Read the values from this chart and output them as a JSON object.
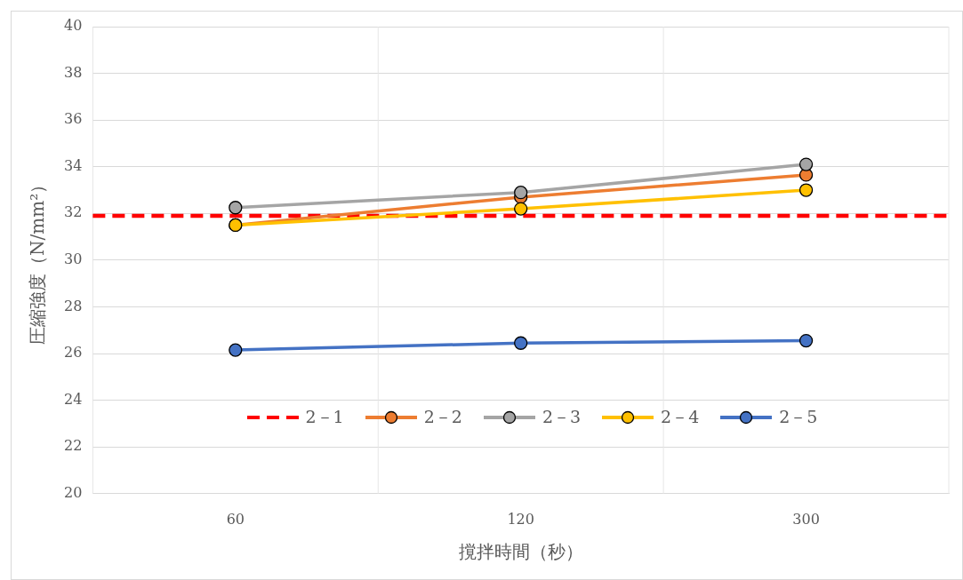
{
  "chart_data": {
    "type": "line",
    "xlabel": "撹拌時間（秒）",
    "ylabel": "圧縮強度（N/mm²）",
    "categories": [
      "60",
      "120",
      "300"
    ],
    "series": [
      {
        "name": "2－2",
        "color": "#ed7d31",
        "values": [
          31.5,
          32.7,
          33.65
        ]
      },
      {
        "name": "2－3",
        "color": "#a5a5a5",
        "values": [
          32.25,
          32.9,
          34.1
        ]
      },
      {
        "name": "2－4",
        "color": "#ffc000",
        "values": [
          31.5,
          32.2,
          33.0
        ]
      },
      {
        "name": "2－5",
        "color": "#4472c4",
        "values": [
          26.15,
          26.45,
          26.55
        ]
      }
    ],
    "ref_lines": [
      {
        "axis": "y",
        "value": 31.9,
        "label": "2－1",
        "color": "#ff0000",
        "line_style": "dashed"
      }
    ],
    "ylim": [
      20,
      40
    ],
    "yticks": [
      20,
      22,
      24,
      26,
      28,
      30,
      32,
      34,
      36,
      38,
      40
    ],
    "grid": true,
    "legend": "bottom",
    "marker": "circle",
    "line_style": "solid"
  }
}
